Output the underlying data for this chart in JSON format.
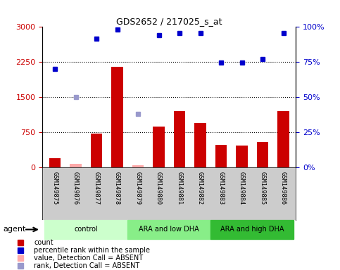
{
  "title": "GDS2652 / 217025_s_at",
  "samples": [
    "GSM149875",
    "GSM149876",
    "GSM149877",
    "GSM149878",
    "GSM149879",
    "GSM149880",
    "GSM149881",
    "GSM149882",
    "GSM149883",
    "GSM149884",
    "GSM149885",
    "GSM149886"
  ],
  "bar_values": [
    200,
    80,
    720,
    2150,
    50,
    870,
    1200,
    950,
    480,
    460,
    540,
    1200
  ],
  "bar_absent": [
    false,
    true,
    false,
    false,
    true,
    false,
    false,
    false,
    false,
    false,
    false,
    false
  ],
  "percentile_values": [
    2100,
    null,
    2750,
    2950,
    null,
    2820,
    2870,
    2870,
    2240,
    2240,
    2310,
    2870
  ],
  "rank_absent_values": [
    null,
    1500,
    null,
    null,
    1150,
    null,
    null,
    null,
    null,
    null,
    null,
    null
  ],
  "bar_color_normal": "#cc0000",
  "bar_color_absent": "#ffaaaa",
  "percentile_color_normal": "#0000cc",
  "percentile_color_absent": "#9999cc",
  "ylim_left": [
    0,
    3000
  ],
  "ylim_right": [
    0,
    100
  ],
  "yticks_left": [
    0,
    750,
    1500,
    2250,
    3000
  ],
  "yticks_right": [
    0,
    25,
    50,
    75,
    100
  ],
  "ytick_labels_right": [
    "0%",
    "25%",
    "50%",
    "75%",
    "100%"
  ],
  "groups": [
    {
      "label": "control",
      "start": 0,
      "end": 3,
      "color": "#ccffcc"
    },
    {
      "label": "ARA and low DHA",
      "start": 4,
      "end": 7,
      "color": "#88ee88"
    },
    {
      "label": "ARA and high DHA",
      "start": 8,
      "end": 11,
      "color": "#33bb33"
    }
  ],
  "legend_items": [
    {
      "label": "count",
      "color": "#cc0000"
    },
    {
      "label": "percentile rank within the sample",
      "color": "#0000cc"
    },
    {
      "label": "value, Detection Call = ABSENT",
      "color": "#ffaaaa"
    },
    {
      "label": "rank, Detection Call = ABSENT",
      "color": "#9999cc"
    }
  ],
  "plot_bg_color": "#ffffff",
  "label_bg_color": "#cccccc",
  "agent_label": "agent",
  "left_tick_color": "#cc0000",
  "right_tick_color": "#0000cc"
}
